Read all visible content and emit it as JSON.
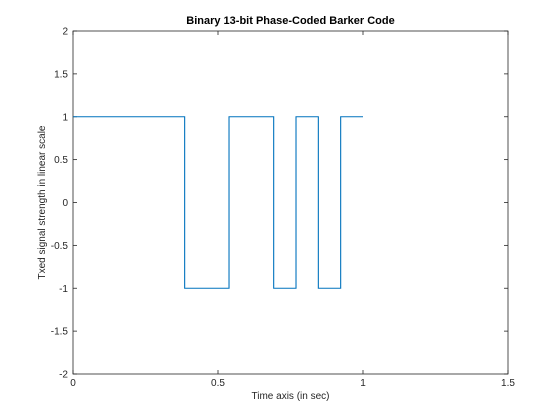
{
  "chart_data": {
    "type": "line",
    "title": "Binary 13-bit Phase-Coded Barker Code",
    "xlabel": "Time axis (in sec)",
    "ylabel": "Txed signal strength in linear scale",
    "xlim": [
      0,
      1.5
    ],
    "ylim": [
      -2,
      2
    ],
    "x_ticks": [
      0,
      0.5,
      1,
      1.5
    ],
    "x_tick_labels": [
      "0",
      "0.5",
      "1",
      "1.5"
    ],
    "y_ticks": [
      2,
      1.5,
      1,
      0.5,
      0,
      -0.5,
      -1,
      -1.5,
      -2
    ],
    "y_tick_labels": [
      "2",
      "1.5",
      "1",
      "0.5",
      "0",
      "-0.5",
      "-1",
      "-1.5",
      "-2"
    ],
    "grid": false,
    "series": [
      {
        "color": "#0072bd",
        "x": [
          0,
          0.385,
          0.385,
          0.538,
          0.538,
          0.692,
          0.692,
          0.769,
          0.769,
          0.846,
          0.846,
          0.923,
          0.923,
          1.0
        ],
        "y": [
          1,
          1,
          -1,
          -1,
          1,
          1,
          -1,
          -1,
          1,
          1,
          -1,
          -1,
          1,
          1
        ]
      }
    ]
  }
}
